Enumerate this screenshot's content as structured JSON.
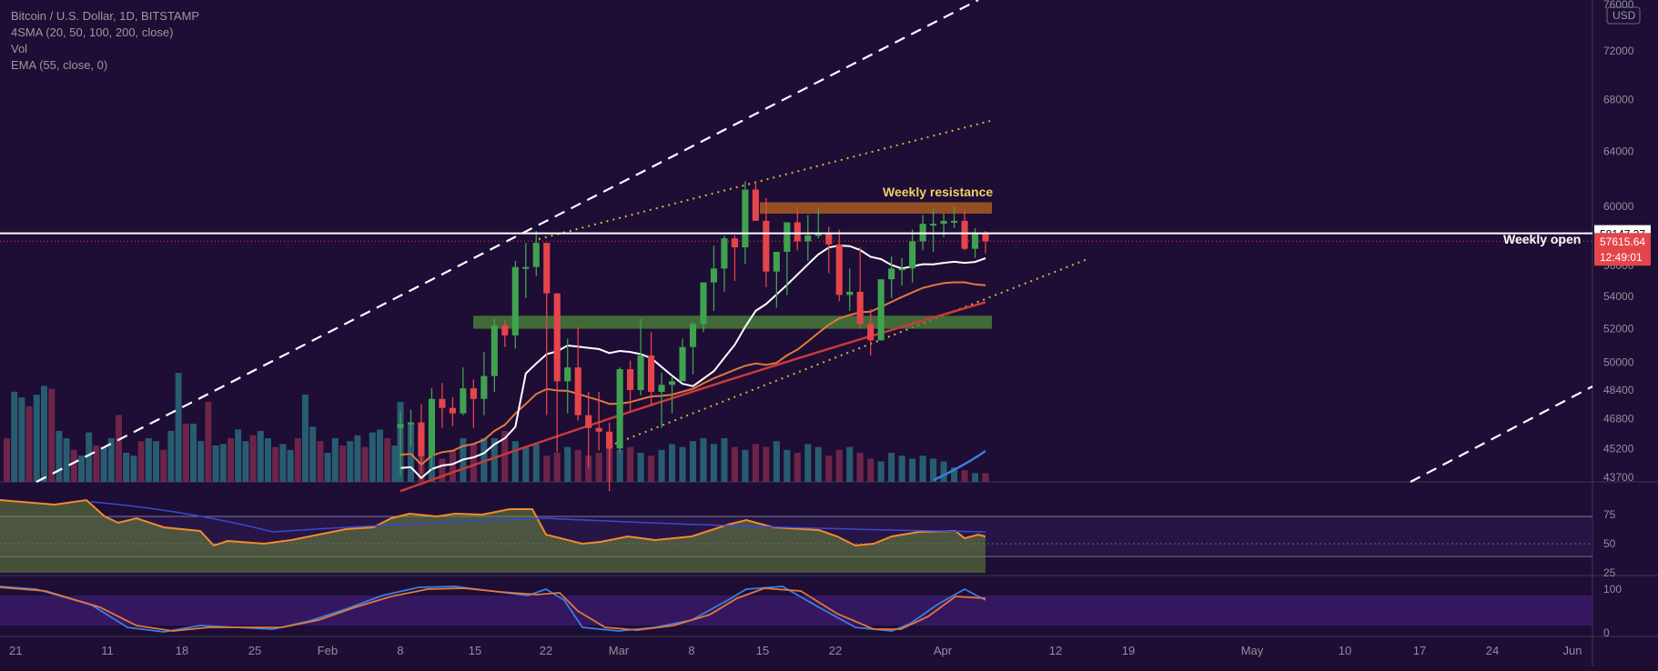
{
  "header": {
    "symbol_line": "Bitcoin / U.S. Dollar, 1D, BITSTAMP",
    "sma_line": "4SMA (20, 50, 100, 200, close)",
    "vol_line": "Vol",
    "ema_line": "EMA (55, close, 0)"
  },
  "currency_badge": "USD",
  "colors": {
    "background": "#1e0d35",
    "up_candle": "#3fa24f",
    "down_candle": "#e5454a",
    "resistance_zone": "#b0601f",
    "support_zone": "#4f8a3a",
    "guide_dotted": "#d9b43a",
    "rsi_line": "#f28b2c",
    "stoch_k": "#3b7fe0",
    "stoch_d": "#e07a3c"
  },
  "annotations": {
    "weekly_resistance": "Weekly resistance",
    "weekly_open": "Weekly open"
  },
  "price_labels": {
    "weekly_open_price": "58147.37",
    "current_price": "57615.64",
    "countdown": "12:49:01"
  },
  "chart_data": {
    "type": "candlestick",
    "title": "Bitcoin / U.S. Dollar, 1D, BITSTAMP",
    "y_axis_ticks": [
      "76000",
      "72000",
      "68000",
      "64000",
      "60000",
      "56000",
      "54000",
      "52000",
      "50000",
      "48400",
      "46800",
      "45200",
      "43700"
    ],
    "x_axis_ticks": [
      "21",
      "11",
      "18",
      "25",
      "Feb",
      "8",
      "15",
      "22",
      "Mar",
      "8",
      "15",
      "22",
      "Apr",
      "12",
      "19",
      "May",
      "10",
      "17",
      "24",
      "Jun"
    ],
    "x_range": [
      "2021-01-21",
      "2021-06-02"
    ],
    "y_range": [
      43700,
      76000
    ],
    "y_scale": "log",
    "candles": [
      {
        "date": "2021-02-08",
        "o": 46300,
        "h": 47200,
        "l": 43800,
        "c": 46500
      },
      {
        "date": "2021-02-09",
        "o": 46500,
        "h": 47300,
        "l": 45300,
        "c": 46600
      },
      {
        "date": "2021-02-10",
        "o": 46600,
        "h": 47600,
        "l": 43900,
        "c": 44800
      },
      {
        "date": "2021-02-11",
        "o": 44800,
        "h": 48500,
        "l": 44100,
        "c": 47900
      },
      {
        "date": "2021-02-12",
        "o": 47900,
        "h": 48800,
        "l": 46300,
        "c": 47400
      },
      {
        "date": "2021-02-13",
        "o": 47400,
        "h": 48000,
        "l": 46400,
        "c": 47100
      },
      {
        "date": "2021-02-14",
        "o": 47100,
        "h": 49700,
        "l": 47000,
        "c": 48500
      },
      {
        "date": "2021-02-15",
        "o": 48500,
        "h": 49000,
        "l": 46300,
        "c": 47900
      },
      {
        "date": "2021-02-16",
        "o": 47900,
        "h": 50600,
        "l": 47000,
        "c": 49200
      },
      {
        "date": "2021-02-17",
        "o": 49200,
        "h": 52600,
        "l": 48300,
        "c": 52200
      },
      {
        "date": "2021-02-18",
        "o": 52200,
        "h": 52500,
        "l": 50900,
        "c": 51600
      },
      {
        "date": "2021-02-19",
        "o": 51600,
        "h": 56300,
        "l": 50800,
        "c": 55900
      },
      {
        "date": "2021-02-20",
        "o": 55900,
        "h": 57500,
        "l": 53900,
        "c": 55900
      },
      {
        "date": "2021-02-21",
        "o": 55900,
        "h": 58300,
        "l": 55300,
        "c": 57500
      },
      {
        "date": "2021-02-22",
        "o": 57500,
        "h": 57500,
        "l": 47000,
        "c": 54200
      },
      {
        "date": "2021-02-23",
        "o": 54200,
        "h": 54200,
        "l": 45000,
        "c": 48900
      },
      {
        "date": "2021-02-24",
        "o": 48900,
        "h": 51400,
        "l": 47100,
        "c": 49700
      },
      {
        "date": "2021-02-25",
        "o": 49700,
        "h": 52100,
        "l": 46700,
        "c": 47000
      },
      {
        "date": "2021-02-26",
        "o": 47000,
        "h": 48300,
        "l": 44200,
        "c": 46300
      },
      {
        "date": "2021-02-27",
        "o": 46300,
        "h": 48300,
        "l": 45100,
        "c": 46100
      },
      {
        "date": "2021-02-28",
        "o": 46100,
        "h": 46600,
        "l": 43000,
        "c": 45200
      },
      {
        "date": "2021-03-01",
        "o": 45200,
        "h": 49700,
        "l": 45000,
        "c": 49600
      },
      {
        "date": "2021-03-02",
        "o": 49600,
        "h": 50100,
        "l": 47200,
        "c": 48400
      },
      {
        "date": "2021-03-03",
        "o": 48400,
        "h": 52600,
        "l": 48100,
        "c": 50400
      },
      {
        "date": "2021-03-04",
        "o": 50400,
        "h": 51800,
        "l": 47500,
        "c": 48300
      },
      {
        "date": "2021-03-05",
        "o": 48300,
        "h": 49400,
        "l": 46300,
        "c": 48700
      },
      {
        "date": "2021-03-06",
        "o": 48700,
        "h": 49200,
        "l": 47100,
        "c": 48900
      },
      {
        "date": "2021-03-07",
        "o": 48900,
        "h": 51400,
        "l": 48900,
        "c": 50900
      },
      {
        "date": "2021-03-08",
        "o": 50900,
        "h": 52400,
        "l": 49300,
        "c": 52300
      },
      {
        "date": "2021-03-09",
        "o": 52300,
        "h": 54900,
        "l": 51800,
        "c": 54900
      },
      {
        "date": "2021-03-10",
        "o": 54900,
        "h": 57300,
        "l": 53100,
        "c": 55800
      },
      {
        "date": "2021-03-11",
        "o": 55800,
        "h": 58000,
        "l": 54300,
        "c": 57800
      },
      {
        "date": "2021-03-12",
        "o": 57800,
        "h": 58000,
        "l": 55000,
        "c": 57200
      },
      {
        "date": "2021-03-13",
        "o": 57200,
        "h": 61800,
        "l": 56100,
        "c": 61200
      },
      {
        "date": "2021-03-14",
        "o": 61200,
        "h": 61700,
        "l": 59000,
        "c": 59000
      },
      {
        "date": "2021-03-15",
        "o": 59000,
        "h": 60600,
        "l": 54600,
        "c": 55600
      },
      {
        "date": "2021-03-16",
        "o": 55600,
        "h": 56900,
        "l": 53300,
        "c": 56900
      },
      {
        "date": "2021-03-17",
        "o": 56900,
        "h": 58900,
        "l": 54100,
        "c": 58900
      },
      {
        "date": "2021-03-18",
        "o": 58900,
        "h": 60000,
        "l": 57000,
        "c": 57600
      },
      {
        "date": "2021-03-19",
        "o": 57600,
        "h": 59400,
        "l": 56300,
        "c": 58000
      },
      {
        "date": "2021-03-20",
        "o": 58000,
        "h": 59900,
        "l": 57800,
        "c": 58100
      },
      {
        "date": "2021-03-21",
        "o": 58100,
        "h": 58600,
        "l": 55500,
        "c": 57400
      },
      {
        "date": "2021-03-22",
        "o": 57400,
        "h": 58400,
        "l": 53700,
        "c": 54100
      },
      {
        "date": "2021-03-23",
        "o": 54100,
        "h": 55800,
        "l": 53100,
        "c": 54300
      },
      {
        "date": "2021-03-24",
        "o": 54300,
        "h": 57200,
        "l": 52000,
        "c": 52300
      },
      {
        "date": "2021-03-25",
        "o": 52300,
        "h": 53200,
        "l": 50400,
        "c": 51300
      },
      {
        "date": "2021-03-26",
        "o": 51300,
        "h": 55100,
        "l": 51300,
        "c": 55100
      },
      {
        "date": "2021-03-27",
        "o": 55100,
        "h": 56600,
        "l": 53900,
        "c": 55800
      },
      {
        "date": "2021-03-28",
        "o": 55800,
        "h": 56500,
        "l": 54700,
        "c": 55800
      },
      {
        "date": "2021-03-29",
        "o": 55800,
        "h": 58400,
        "l": 54900,
        "c": 57600
      },
      {
        "date": "2021-03-30",
        "o": 57600,
        "h": 59400,
        "l": 57000,
        "c": 58800
      },
      {
        "date": "2021-03-31",
        "o": 58800,
        "h": 59800,
        "l": 56900,
        "c": 58800
      },
      {
        "date": "2021-04-01",
        "o": 58800,
        "h": 59500,
        "l": 57900,
        "c": 59000
      },
      {
        "date": "2021-04-02",
        "o": 59000,
        "h": 60000,
        "l": 58500,
        "c": 59000
      },
      {
        "date": "2021-04-03",
        "o": 59000,
        "h": 59800,
        "l": 57000,
        "c": 57100
      },
      {
        "date": "2021-04-04",
        "o": 57100,
        "h": 58500,
        "l": 56500,
        "c": 58200
      },
      {
        "date": "2021-04-05",
        "o": 58200,
        "h": 58300,
        "l": 56800,
        "c": 57600
      }
    ],
    "lines": {
      "weekly_open": 58147.37,
      "current_price": 57615.64,
      "weekly_resistance_zone": [
        59500,
        60300
      ],
      "support_zone": [
        52000,
        52800
      ]
    },
    "rsi": {
      "ticks": [
        "75",
        "50",
        "25"
      ],
      "last": 55
    },
    "stoch": {
      "ticks": [
        "100",
        "0"
      ]
    }
  }
}
